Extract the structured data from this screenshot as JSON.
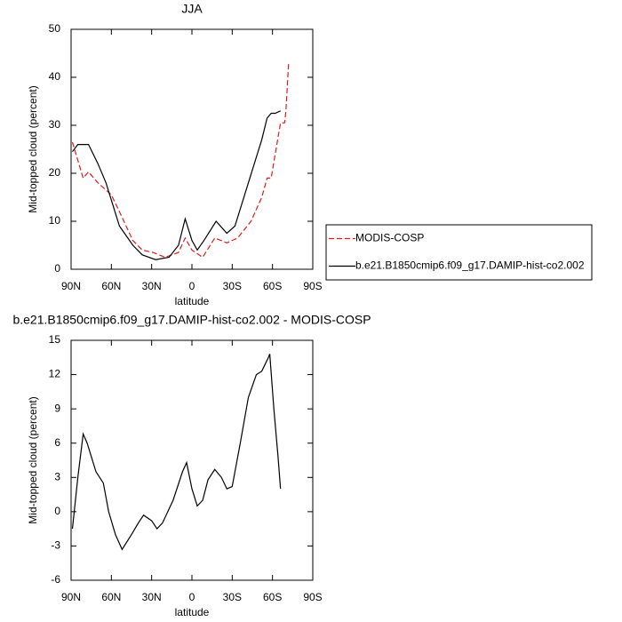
{
  "chart_data": [
    {
      "type": "line",
      "title": "JJA",
      "xlabel": "latitude",
      "ylabel": "Mid-topped cloud (percent)",
      "xlim": [
        90,
        -90
      ],
      "xticks": [
        {
          "value": 90,
          "label": "90N"
        },
        {
          "value": 60,
          "label": "60N"
        },
        {
          "value": 30,
          "label": "30N"
        },
        0,
        {
          "value": -30,
          "label": "30S"
        },
        {
          "value": -60,
          "label": "60S"
        },
        {
          "value": -90,
          "label": "90S"
        }
      ],
      "ylim": [
        0,
        50
      ],
      "yticks": [
        0,
        10,
        20,
        30,
        40,
        50
      ],
      "legend": "right",
      "series": [
        {
          "name": "MODIS-COSP",
          "color": "#e31a1c",
          "dash": true,
          "x": [
            89,
            81,
            77,
            70,
            60,
            54,
            44,
            37,
            29,
            20,
            10,
            5,
            0,
            -8,
            -17,
            -26,
            -34,
            -44,
            -52,
            -56,
            -59,
            -62,
            -66,
            -69,
            -70,
            -72
          ],
          "values": [
            26.5,
            19,
            20.3,
            18,
            15.5,
            12,
            6,
            4,
            3.5,
            2.5,
            3.5,
            6.5,
            4,
            2.5,
            6.5,
            5.5,
            6.5,
            10,
            15,
            19,
            19,
            24,
            30.5,
            30.5,
            33,
            43
          ]
        },
        {
          "name": "b.e21.B1850cmip6.f09_g17.DAMIP-hist-co2.002",
          "color": "#000000",
          "dash": false,
          "x": [
            89,
            85,
            77,
            70,
            64,
            54,
            44,
            37,
            27,
            17,
            10,
            5,
            0,
            -4,
            -9,
            -18,
            -26,
            -32,
            -42,
            -52,
            -56,
            -59,
            -62,
            -66
          ],
          "values": [
            24.5,
            26,
            26,
            22,
            18,
            9,
            5,
            3,
            2,
            2.5,
            5,
            10.5,
            6,
            4,
            6,
            10,
            7.5,
            9,
            18,
            27,
            31.5,
            32.5,
            32.5,
            33
          ]
        }
      ]
    },
    {
      "type": "line",
      "title": "b.e21.B1850cmip6.f09_g17.DAMIP-hist-co2.002 - MODIS-COSP",
      "xlabel": "latitude",
      "ylabel": "Mid-topped cloud (percent)",
      "xlim": [
        90,
        -90
      ],
      "xticks": [
        {
          "value": 90,
          "label": "90N"
        },
        {
          "value": 60,
          "label": "60N"
        },
        {
          "value": 30,
          "label": "30N"
        },
        0,
        {
          "value": -30,
          "label": "30S"
        },
        {
          "value": -60,
          "label": "60S"
        },
        {
          "value": -90,
          "label": "90S"
        }
      ],
      "ylim": [
        -6,
        15
      ],
      "yticks": [
        -6,
        -3,
        0,
        3,
        6,
        9,
        12,
        15
      ],
      "series": [
        {
          "color": "#000000",
          "dash": false,
          "x": [
            89,
            85,
            81,
            78,
            71.5,
            66,
            62,
            57,
            52,
            45,
            40,
            36,
            30,
            26,
            22,
            14,
            7,
            4,
            0,
            -4,
            -8,
            -12,
            -17,
            -22,
            -26,
            -30,
            -36,
            -42,
            -48,
            -52,
            -57,
            -58,
            -61,
            -64,
            -66
          ],
          "values": [
            -1.5,
            3,
            6.8,
            6,
            3.5,
            2.5,
            0,
            -2,
            -3.3,
            -2,
            -1,
            -0.3,
            -0.8,
            -1.5,
            -1,
            1,
            3.5,
            4.3,
            2,
            0.5,
            1,
            2.8,
            3.7,
            3,
            2,
            2.2,
            6,
            10,
            12,
            12.3,
            13.5,
            13.8,
            9,
            5,
            2
          ]
        }
      ]
    }
  ]
}
